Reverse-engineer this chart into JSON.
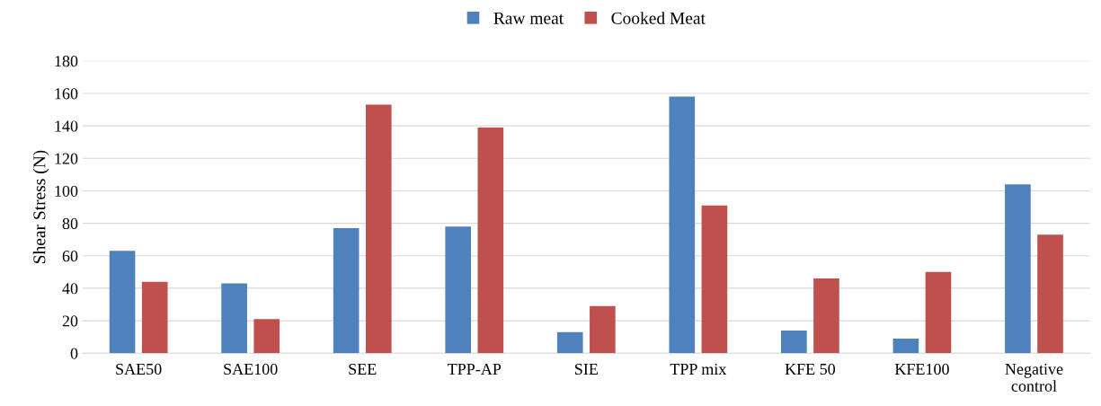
{
  "chart_data": {
    "type": "bar",
    "ylabel": "Shear Stress (N)",
    "categories": [
      "SAE50",
      "SAE100",
      "SEE",
      "TPP-AP",
      "SIE",
      "TPP mix",
      "KFE 50",
      "KFE100",
      "Negative\ncontrol"
    ],
    "series": [
      {
        "name": "Raw meat",
        "color": "#4f81bd",
        "values": [
          63,
          43,
          77,
          78,
          13,
          158,
          14,
          9,
          104
        ]
      },
      {
        "name": "Cooked Meat",
        "color": "#c0504d",
        "values": [
          44,
          21,
          153,
          139,
          29,
          91,
          46,
          50,
          73
        ]
      }
    ],
    "ylim": [
      0,
      180
    ],
    "yticks": [
      0,
      20,
      40,
      60,
      80,
      100,
      120,
      140,
      160,
      180
    ],
    "grid": "y",
    "legend": "top"
  }
}
